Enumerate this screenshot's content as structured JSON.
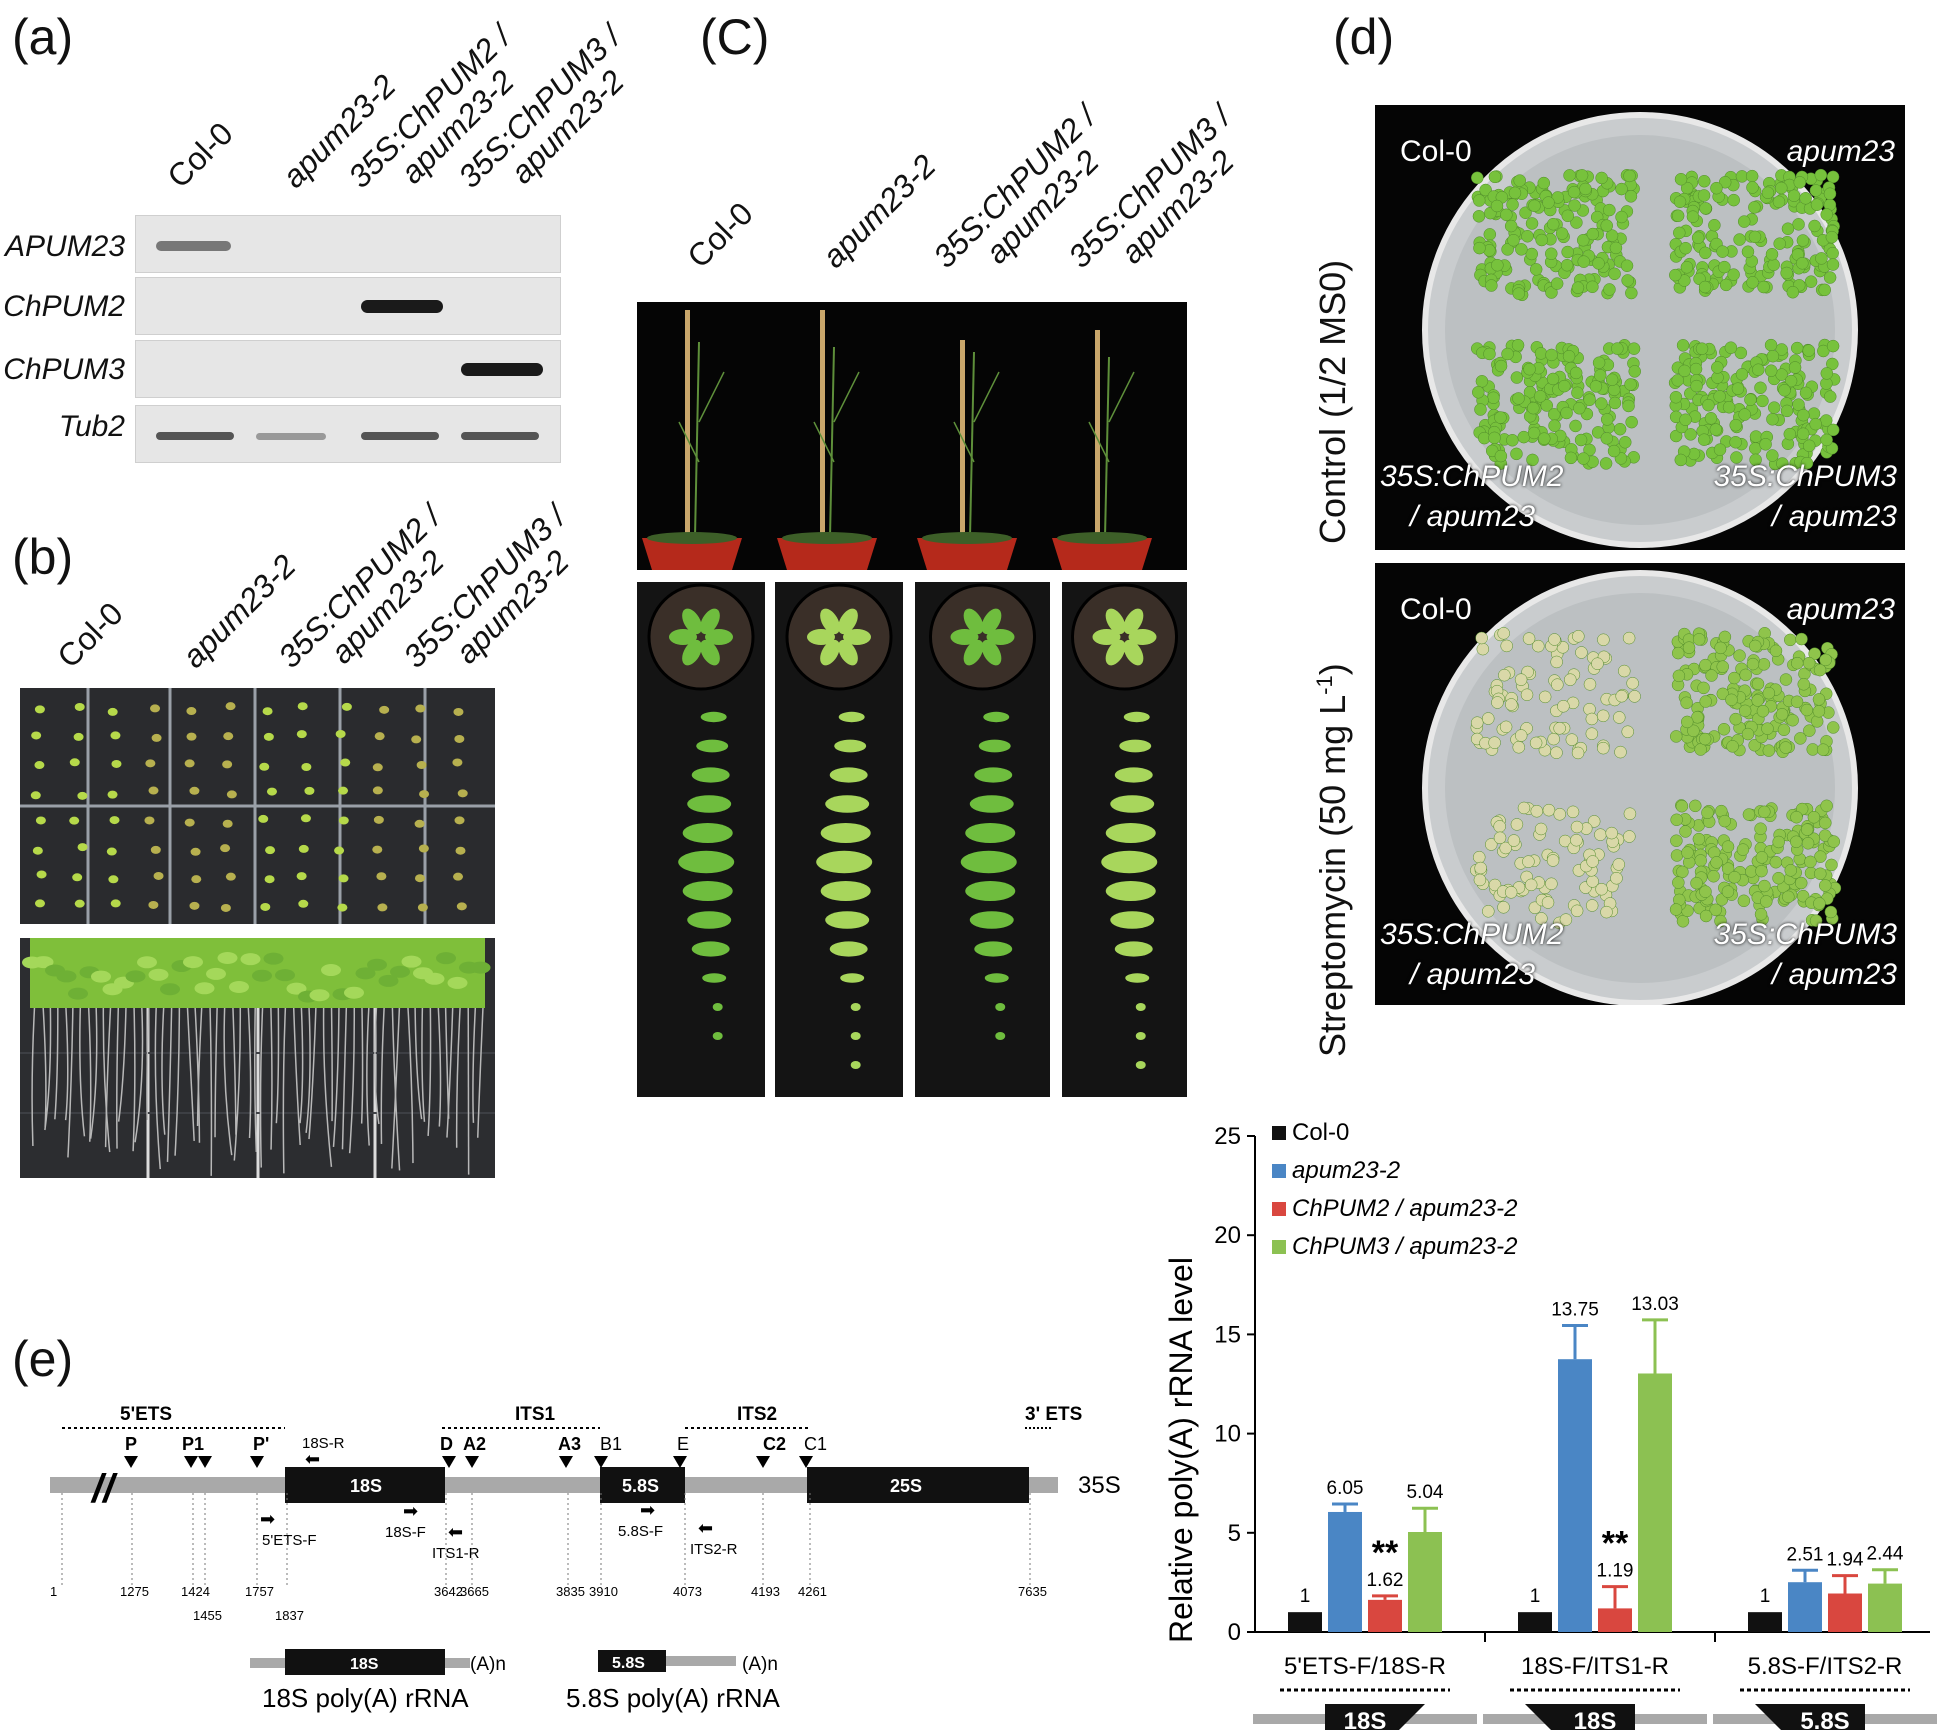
{
  "panels": {
    "a": "(a)",
    "b": "(b)",
    "c": "(C)",
    "d": "(d)",
    "e": "(e)"
  },
  "genotypes": {
    "col": "Col-0",
    "apum": "apum23-2",
    "chpum2": [
      "35S:ChPUM2 /",
      "apum23-2"
    ],
    "chpum3": [
      "35S:ChPUM3 /",
      "apum23-2"
    ]
  },
  "gel": {
    "rows": [
      "APUM23",
      "ChPUM2",
      "ChPUM3",
      "Tub2"
    ]
  },
  "plates": {
    "control_label": "Control (1/2 MS0)",
    "strep_label": "Streptomycin (50 mg L-1)",
    "strep_label_main": "Streptomycin (50 mg L",
    "strep_label_sup": "-1",
    "strep_label_end": ")",
    "tl": "Col-0",
    "tr": "apum23",
    "bl": [
      "35S:ChPUM2",
      "/ apum23"
    ],
    "br": [
      "35S:ChPUM3",
      "/ apum23"
    ]
  },
  "diagram": {
    "regions": {
      "ets5": "5'ETS",
      "its1": "ITS1",
      "its2": "ITS2",
      "ets3": "3' ETS"
    },
    "sites": [
      "P",
      "P1",
      "P'",
      "D",
      "A2",
      "A3",
      "B1",
      "E",
      "C2",
      "C1"
    ],
    "blocks": {
      "s18": "18S",
      "s58": "5.8S",
      "s25": "25S"
    },
    "label_35s": "35S",
    "primers": {
      "r18": "18S-R",
      "f5ets": "5'ETS-F",
      "f18": "18S-F",
      "its1r": "ITS1-R",
      "f58": "5.8S-F",
      "its2r": "ITS2-R"
    },
    "positions": [
      "1",
      "1275",
      "1424",
      "1455",
      "1757",
      "1837",
      "3642",
      "3665",
      "3835",
      "3910",
      "4073",
      "4193",
      "4261",
      "7635"
    ],
    "polyA": "(A)n",
    "cap18": "18S poly(A) rRNA",
    "cap58": "5.8S poly(A) rRNA"
  },
  "chart_data": {
    "type": "bar",
    "ylabel": "Relative poly(A) rRNA level",
    "ylim": [
      0,
      25
    ],
    "yticks": [
      "0",
      "5",
      "10",
      "15",
      "20",
      "25"
    ],
    "categories": [
      "5'ETS-F/18S-R",
      "18S-F/ITS1-R",
      "5.8S-F/ITS2-R"
    ],
    "category_icons": [
      "18S",
      "18S",
      "5.8S"
    ],
    "series": [
      {
        "name": "Col-0",
        "color": "#111111",
        "values": [
          1,
          1,
          1
        ],
        "errors": [
          0,
          0,
          0
        ],
        "labels": [
          "1",
          "1",
          "1"
        ]
      },
      {
        "name": "apum23-2",
        "color": "#4a86c5",
        "values": [
          6.05,
          13.75,
          2.51
        ],
        "errors": [
          0.4,
          1.7,
          0.6
        ],
        "labels": [
          "6.05",
          "13.75",
          "2.51"
        ]
      },
      {
        "name": "ChPUM2 / apum23-2",
        "color": "#d9473f",
        "values": [
          1.62,
          1.19,
          1.94
        ],
        "errors": [
          0.2,
          1.1,
          0.9
        ],
        "labels": [
          "1.62",
          "1.19",
          "1.94"
        ]
      },
      {
        "name": "ChPUM3 / apum23-2",
        "color": "#8cc152",
        "values": [
          5.04,
          13.03,
          2.44
        ],
        "errors": [
          1.2,
          2.7,
          0.7
        ],
        "labels": [
          "5.04",
          "13.03",
          "2.44"
        ]
      }
    ],
    "significance": "**"
  }
}
